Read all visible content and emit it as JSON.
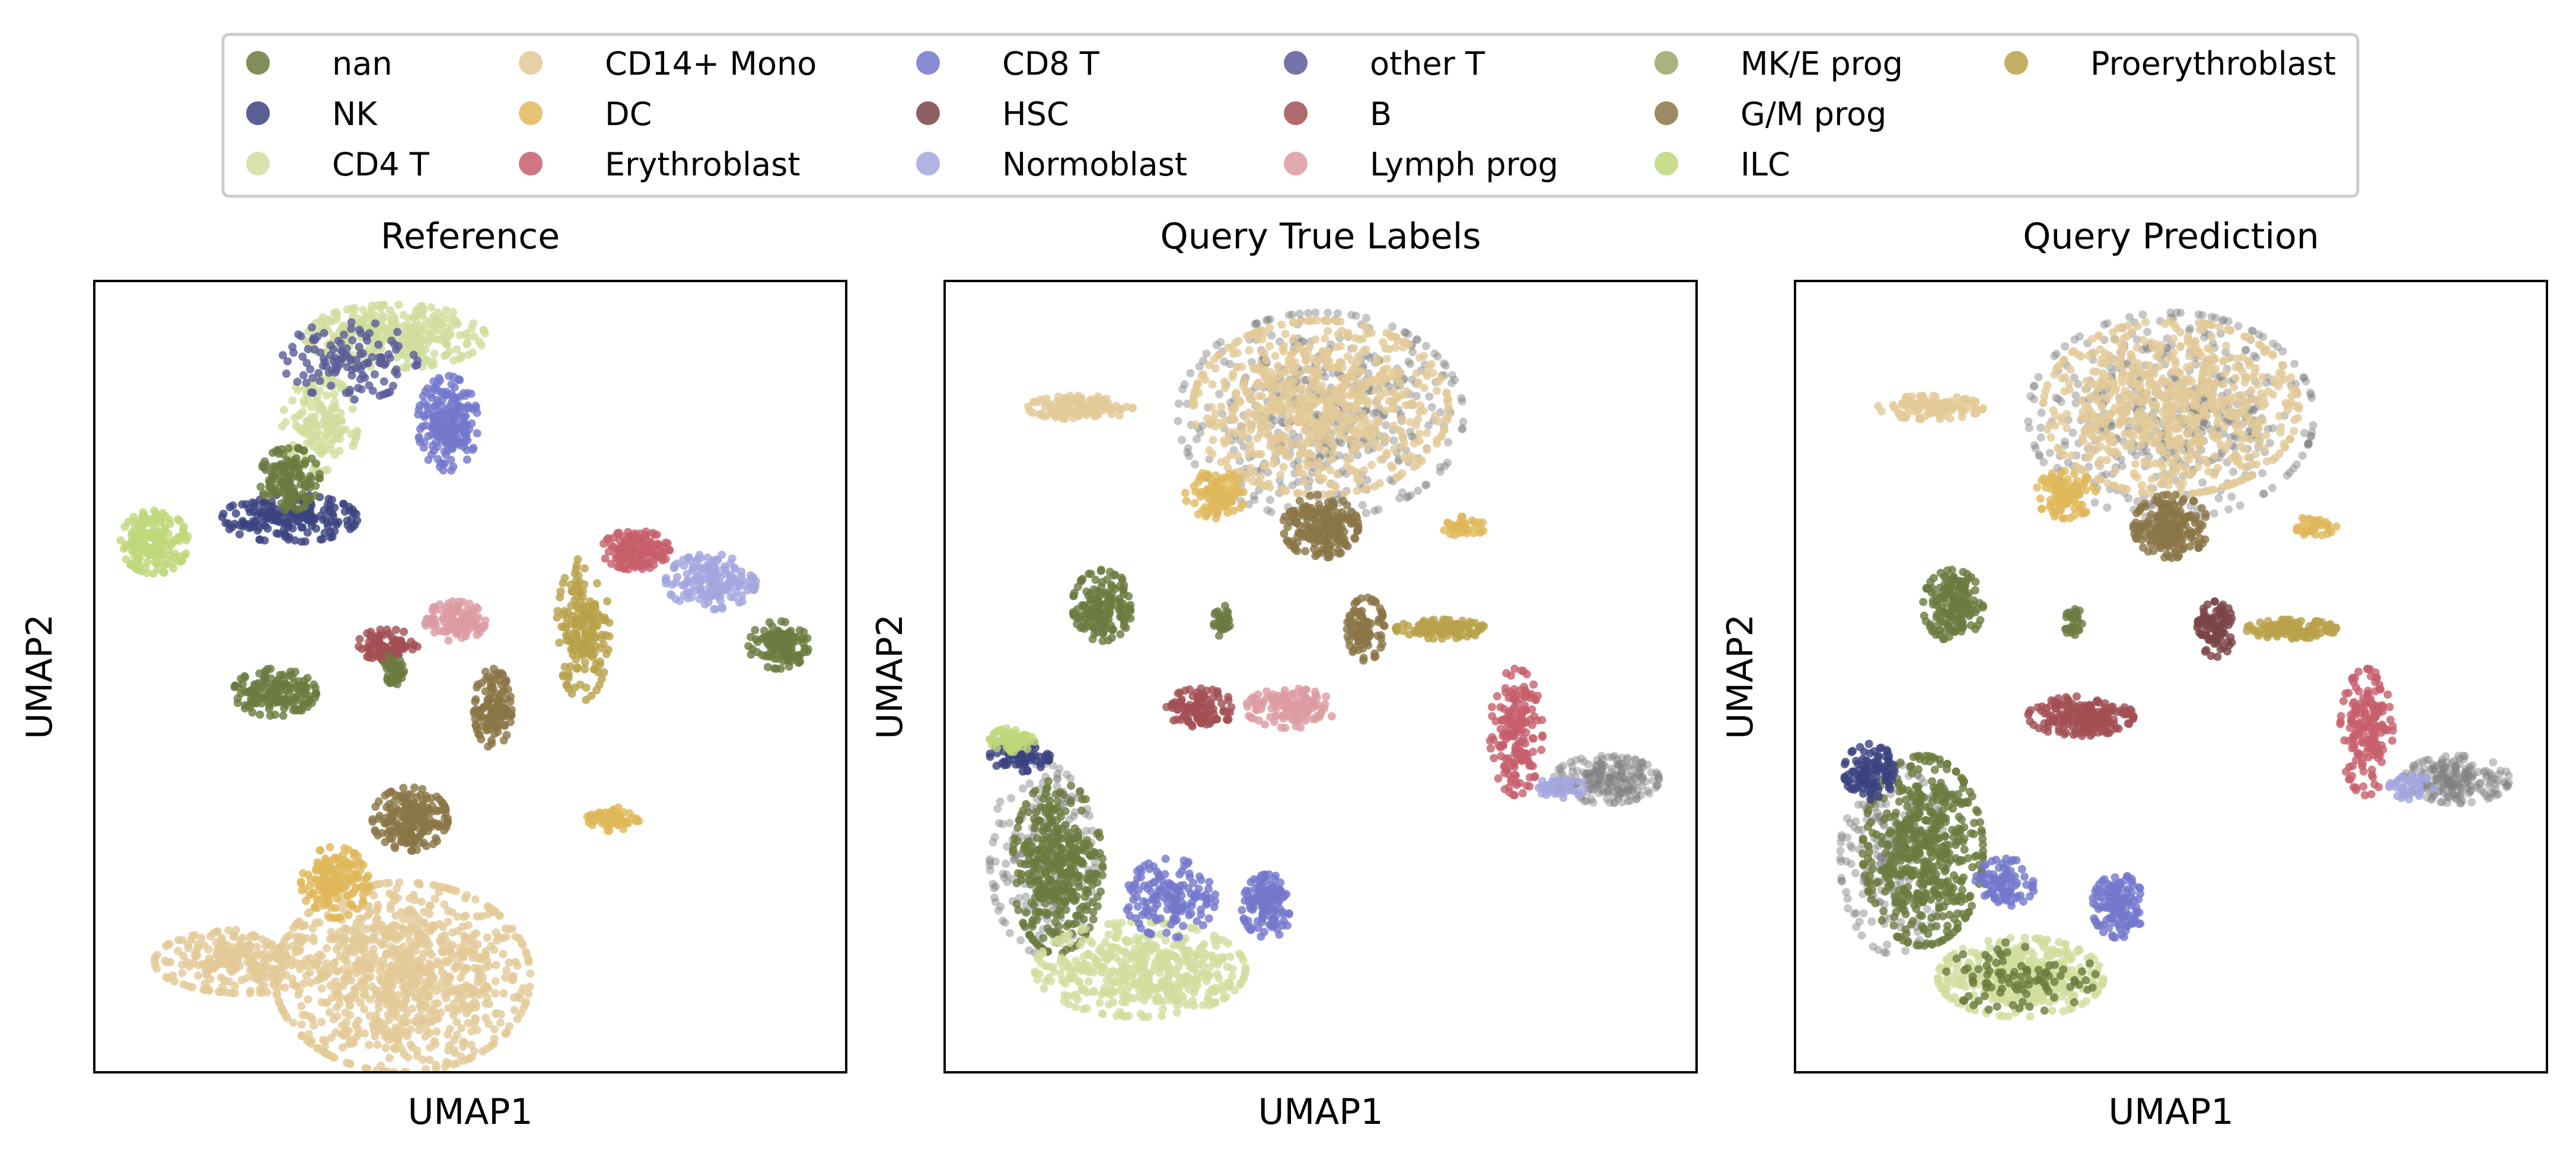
{
  "legend": {
    "placement": "top-center",
    "columns": 6,
    "entries": [
      {
        "label": "nan",
        "color": "#6b7a3f"
      },
      {
        "label": "NK",
        "color": "#3b4380"
      },
      {
        "label": "CD4 T",
        "color": "#d1dd9e"
      },
      {
        "label": "CD14+ Mono",
        "color": "#e2c997"
      },
      {
        "label": "DC",
        "color": "#e0b85a"
      },
      {
        "label": "Erythroblast",
        "color": "#c75f6b"
      },
      {
        "label": "CD8 T",
        "color": "#7378cc"
      },
      {
        "label": "HSC",
        "color": "#7b4446"
      },
      {
        "label": "Normoblast",
        "color": "#a2a6de"
      },
      {
        "label": "other T",
        "color": "#5a5d99"
      },
      {
        "label": "B",
        "color": "#a24f54"
      },
      {
        "label": "Lymph prog",
        "color": "#dc9ba2"
      },
      {
        "label": "MK/E prog",
        "color": "#9aa66a"
      },
      {
        "label": "G/M prog",
        "color": "#8a7546"
      },
      {
        "label": "ILC",
        "color": "#bfd77a"
      },
      {
        "label": "Proerythroblast",
        "color": "#b8a148"
      }
    ]
  },
  "chart_data": [
    {
      "type": "scatter",
      "title": "Reference",
      "xlabel": "UMAP1",
      "ylabel": "UMAP2",
      "grid": false,
      "xlim": [
        0,
        10
      ],
      "ylim": [
        0,
        10
      ],
      "clusters": [
        {
          "label": "CD14+ Mono",
          "x": 4.1,
          "y": 1.2,
          "rx": 1.7,
          "ry": 1.2,
          "n": 900
        },
        {
          "label": "CD14+ Mono",
          "x": 2.0,
          "y": 1.4,
          "rx": 1.2,
          "ry": 0.4,
          "n": 260
        },
        {
          "label": "DC",
          "x": 3.2,
          "y": 2.4,
          "rx": 0.45,
          "ry": 0.45,
          "n": 160
        },
        {
          "label": "G/M prog",
          "x": 4.2,
          "y": 3.2,
          "rx": 0.5,
          "ry": 0.4,
          "n": 200
        },
        {
          "label": "G/M prog",
          "x": 5.3,
          "y": 4.6,
          "rx": 0.25,
          "ry": 0.5,
          "n": 120
        },
        {
          "label": "DC",
          "x": 6.9,
          "y": 3.2,
          "rx": 0.35,
          "ry": 0.15,
          "n": 60
        },
        {
          "label": "Proerythroblast",
          "x": 6.5,
          "y": 5.6,
          "rx": 0.35,
          "ry": 0.9,
          "n": 180
        },
        {
          "label": "Erythroblast",
          "x": 7.2,
          "y": 6.6,
          "rx": 0.45,
          "ry": 0.25,
          "n": 140
        },
        {
          "label": "Normoblast",
          "x": 8.2,
          "y": 6.2,
          "rx": 0.6,
          "ry": 0.35,
          "n": 160
        },
        {
          "label": "nan",
          "x": 9.1,
          "y": 5.4,
          "rx": 0.4,
          "ry": 0.3,
          "n": 120
        },
        {
          "label": "Lymph prog",
          "x": 4.8,
          "y": 5.7,
          "rx": 0.4,
          "ry": 0.25,
          "n": 110
        },
        {
          "label": "B",
          "x": 3.9,
          "y": 5.4,
          "rx": 0.4,
          "ry": 0.2,
          "n": 90
        },
        {
          "label": "nan",
          "x": 2.4,
          "y": 4.8,
          "rx": 0.55,
          "ry": 0.3,
          "n": 160
        },
        {
          "label": "nan",
          "x": 4.0,
          "y": 5.1,
          "rx": 0.15,
          "ry": 0.2,
          "n": 40
        },
        {
          "label": "CD4 T",
          "x": 4.0,
          "y": 9.3,
          "rx": 1.2,
          "ry": 0.4,
          "n": 330
        },
        {
          "label": "CD4 T",
          "x": 3.0,
          "y": 8.2,
          "rx": 0.5,
          "ry": 0.6,
          "n": 160
        },
        {
          "label": "CD8 T",
          "x": 4.7,
          "y": 8.2,
          "rx": 0.4,
          "ry": 0.6,
          "n": 200
        },
        {
          "label": "NK",
          "x": 2.6,
          "y": 7.0,
          "rx": 0.9,
          "ry": 0.3,
          "n": 180
        },
        {
          "label": "nan",
          "x": 2.6,
          "y": 7.5,
          "rx": 0.4,
          "ry": 0.4,
          "n": 130
        },
        {
          "label": "ILC",
          "x": 0.8,
          "y": 6.7,
          "rx": 0.45,
          "ry": 0.4,
          "n": 170
        },
        {
          "label": "other T",
          "x": 3.4,
          "y": 9.0,
          "rx": 0.9,
          "ry": 0.5,
          "n": 120
        }
      ]
    },
    {
      "type": "scatter",
      "title": "Query True Labels",
      "xlabel": "UMAP1",
      "ylabel": "UMAP2",
      "grid": false,
      "xlim": [
        0,
        10
      ],
      "ylim": [
        0,
        10
      ],
      "clusters": [
        {
          "label": "grey",
          "x": 5.0,
          "y": 8.3,
          "rx": 1.9,
          "ry": 1.3,
          "n": 500
        },
        {
          "label": "CD14+ Mono",
          "x": 5.0,
          "y": 8.4,
          "rx": 1.7,
          "ry": 1.1,
          "n": 700
        },
        {
          "label": "CD14+ Mono",
          "x": 1.8,
          "y": 8.4,
          "rx": 0.7,
          "ry": 0.15,
          "n": 120
        },
        {
          "label": "DC",
          "x": 3.6,
          "y": 7.3,
          "rx": 0.4,
          "ry": 0.3,
          "n": 90
        },
        {
          "label": "G/M prog",
          "x": 5.0,
          "y": 6.9,
          "rx": 0.5,
          "ry": 0.4,
          "n": 200
        },
        {
          "label": "G/M prog",
          "x": 5.6,
          "y": 5.6,
          "rx": 0.25,
          "ry": 0.4,
          "n": 100
        },
        {
          "label": "DC",
          "x": 6.9,
          "y": 6.9,
          "rx": 0.3,
          "ry": 0.12,
          "n": 40
        },
        {
          "label": "Proerythroblast",
          "x": 6.6,
          "y": 5.6,
          "rx": 0.6,
          "ry": 0.12,
          "n": 120
        },
        {
          "label": "Erythroblast",
          "x": 7.6,
          "y": 4.3,
          "rx": 0.35,
          "ry": 0.8,
          "n": 170
        },
        {
          "label": "grey",
          "x": 8.8,
          "y": 3.7,
          "rx": 0.7,
          "ry": 0.3,
          "n": 200
        },
        {
          "label": "Normoblast",
          "x": 8.2,
          "y": 3.6,
          "rx": 0.3,
          "ry": 0.15,
          "n": 40
        },
        {
          "label": "nan",
          "x": 2.1,
          "y": 5.9,
          "rx": 0.4,
          "ry": 0.45,
          "n": 160
        },
        {
          "label": "B",
          "x": 3.4,
          "y": 4.6,
          "rx": 0.45,
          "ry": 0.25,
          "n": 110
        },
        {
          "label": "Lymph prog",
          "x": 4.6,
          "y": 4.6,
          "rx": 0.6,
          "ry": 0.25,
          "n": 120
        },
        {
          "label": "nan",
          "x": 3.7,
          "y": 5.7,
          "rx": 0.12,
          "ry": 0.2,
          "n": 30
        },
        {
          "label": "grey",
          "x": 1.3,
          "y": 2.7,
          "rx": 0.7,
          "ry": 1.2,
          "n": 220
        },
        {
          "label": "nan",
          "x": 1.5,
          "y": 2.6,
          "rx": 0.6,
          "ry": 1.1,
          "n": 360
        },
        {
          "label": "NK",
          "x": 1.0,
          "y": 4.0,
          "rx": 0.4,
          "ry": 0.2,
          "n": 80
        },
        {
          "label": "ILC",
          "x": 0.9,
          "y": 4.2,
          "rx": 0.3,
          "ry": 0.15,
          "n": 70
        },
        {
          "label": "CD4 T",
          "x": 2.6,
          "y": 1.3,
          "rx": 1.4,
          "ry": 0.6,
          "n": 450
        },
        {
          "label": "CD8 T",
          "x": 3.0,
          "y": 2.2,
          "rx": 0.6,
          "ry": 0.5,
          "n": 150
        },
        {
          "label": "CD8 T",
          "x": 4.3,
          "y": 2.1,
          "rx": 0.35,
          "ry": 0.4,
          "n": 130
        }
      ]
    },
    {
      "type": "scatter",
      "title": "Query Prediction",
      "xlabel": "UMAP1",
      "ylabel": "UMAP2",
      "grid": false,
      "xlim": [
        0,
        10
      ],
      "ylim": [
        0,
        10
      ],
      "clusters": [
        {
          "label": "grey",
          "x": 5.0,
          "y": 8.3,
          "rx": 1.9,
          "ry": 1.3,
          "n": 500
        },
        {
          "label": "CD14+ Mono",
          "x": 5.0,
          "y": 8.4,
          "rx": 1.7,
          "ry": 1.1,
          "n": 700
        },
        {
          "label": "CD14+ Mono",
          "x": 1.8,
          "y": 8.4,
          "rx": 0.7,
          "ry": 0.15,
          "n": 120
        },
        {
          "label": "DC",
          "x": 3.6,
          "y": 7.3,
          "rx": 0.4,
          "ry": 0.3,
          "n": 90
        },
        {
          "label": "G/M prog",
          "x": 5.0,
          "y": 6.9,
          "rx": 0.5,
          "ry": 0.4,
          "n": 200
        },
        {
          "label": "HSC",
          "x": 5.6,
          "y": 5.6,
          "rx": 0.25,
          "ry": 0.35,
          "n": 90
        },
        {
          "label": "DC",
          "x": 6.9,
          "y": 6.9,
          "rx": 0.3,
          "ry": 0.12,
          "n": 40
        },
        {
          "label": "Proerythroblast",
          "x": 6.6,
          "y": 5.6,
          "rx": 0.6,
          "ry": 0.12,
          "n": 120
        },
        {
          "label": "Erythroblast",
          "x": 7.6,
          "y": 4.3,
          "rx": 0.35,
          "ry": 0.8,
          "n": 170
        },
        {
          "label": "grey",
          "x": 8.8,
          "y": 3.7,
          "rx": 0.7,
          "ry": 0.3,
          "n": 200
        },
        {
          "label": "Normoblast",
          "x": 8.2,
          "y": 3.6,
          "rx": 0.3,
          "ry": 0.15,
          "n": 40
        },
        {
          "label": "nan",
          "x": 2.1,
          "y": 5.9,
          "rx": 0.4,
          "ry": 0.45,
          "n": 160
        },
        {
          "label": "B",
          "x": 3.8,
          "y": 4.5,
          "rx": 0.7,
          "ry": 0.25,
          "n": 200
        },
        {
          "label": "nan",
          "x": 3.7,
          "y": 5.7,
          "rx": 0.12,
          "ry": 0.2,
          "n": 30
        },
        {
          "label": "grey",
          "x": 1.3,
          "y": 2.7,
          "rx": 0.7,
          "ry": 1.2,
          "n": 220
        },
        {
          "label": "nan",
          "x": 1.7,
          "y": 2.8,
          "rx": 0.8,
          "ry": 1.2,
          "n": 500
        },
        {
          "label": "NK",
          "x": 1.0,
          "y": 3.8,
          "rx": 0.35,
          "ry": 0.35,
          "n": 110
        },
        {
          "label": "CD8 T",
          "x": 2.8,
          "y": 2.4,
          "rx": 0.4,
          "ry": 0.3,
          "n": 90
        },
        {
          "label": "CD8 T",
          "x": 4.3,
          "y": 2.1,
          "rx": 0.35,
          "ry": 0.4,
          "n": 130
        },
        {
          "label": "CD4 T",
          "x": 3.0,
          "y": 1.2,
          "rx": 1.1,
          "ry": 0.5,
          "n": 400
        },
        {
          "label": "nan",
          "x": 3.0,
          "y": 1.2,
          "rx": 1.0,
          "ry": 0.45,
          "n": 90
        }
      ]
    }
  ]
}
